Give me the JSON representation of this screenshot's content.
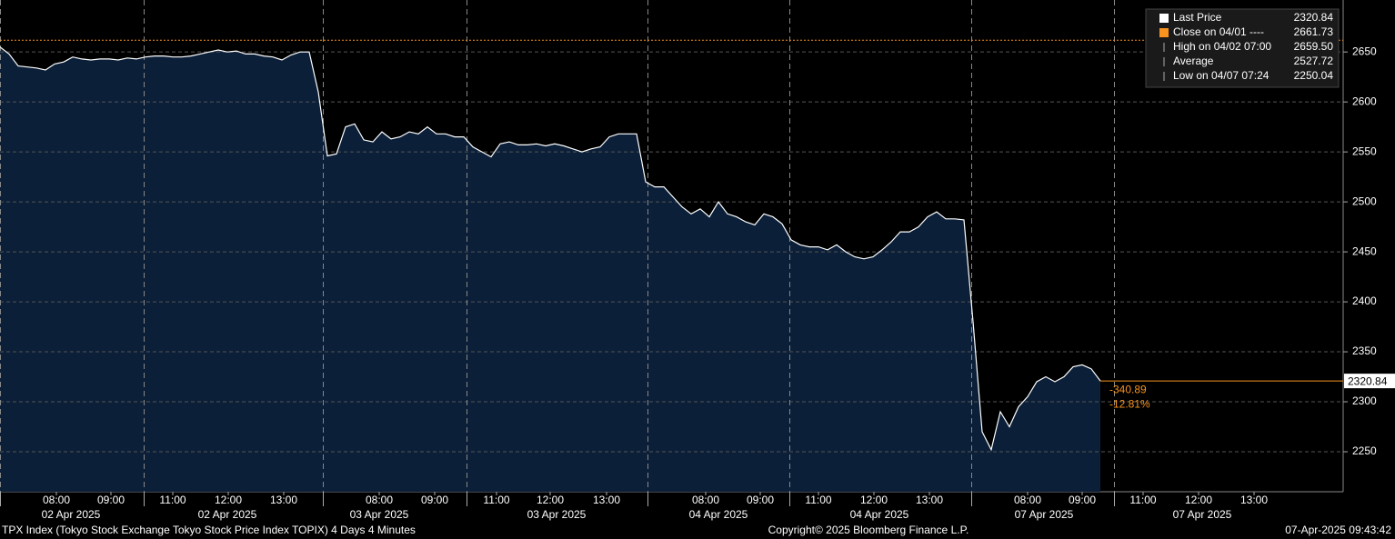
{
  "chart_data": {
    "type": "area",
    "title": "TPX Index (Tokyo Stock Exchange Tokyo Stock Price Index TOPIX) 4 Days 4 Minutes",
    "copyright": "Copyright© 2025 Bloomberg Finance L.P.",
    "timestamp": "07-Apr-2025 09:43:42",
    "color": "#ffffff",
    "fill": "#0b1f38",
    "values": [
      2655,
      2648,
      2636,
      2635,
      2634,
      2632,
      2638,
      2640,
      2645,
      2643,
      2642,
      2643,
      2643,
      2642,
      2644,
      2643,
      2645,
      2646,
      2646,
      2645,
      2645,
      2646,
      2648,
      2650,
      2652,
      2650,
      2651,
      2648,
      2648,
      2646,
      2645,
      2642,
      2647,
      2650,
      2650,
      2610,
      2546,
      2548,
      2575,
      2578,
      2562,
      2560,
      2570,
      2563,
      2565,
      2570,
      2568,
      2575,
      2568,
      2568,
      2565,
      2565,
      2555,
      2550,
      2545,
      2558,
      2560,
      2557,
      2557,
      2558,
      2556,
      2558,
      2556,
      2553,
      2550,
      2553,
      2555,
      2565,
      2568,
      2568,
      2568,
      2520,
      2515,
      2515,
      2505,
      2495,
      2488,
      2493,
      2485,
      2500,
      2488,
      2485,
      2480,
      2477,
      2488,
      2485,
      2478,
      2462,
      2457,
      2455,
      2455,
      2452,
      2457,
      2450,
      2445,
      2443,
      2445,
      2452,
      2460,
      2470,
      2470,
      2475,
      2485,
      2490,
      2483,
      2483,
      2482,
      2380,
      2270,
      2252,
      2290,
      2275,
      2295,
      2305,
      2320,
      2325,
      2320,
      2325,
      2335,
      2337,
      2333,
      2320.84
    ],
    "close_line": 2661.73,
    "last_price": 2320.84,
    "change": "-340.89",
    "change_pct": "-12.81%",
    "legend": [
      {
        "name": "Last Price",
        "value": 2320.84
      },
      {
        "name": "Close on 04/01 ----",
        "value": 2661.73
      },
      {
        "name": "High on 04/02 07:00",
        "value": 2659.5,
        "value_label": "2659.50"
      },
      {
        "name": "Average",
        "value": 2527.72
      },
      {
        "name": "Low on 04/07 07:24",
        "value": 2250.04
      }
    ],
    "xlim": [
      0,
      147.7
    ],
    "ylim": [
      2210,
      2702
    ],
    "yticks": [
      2250,
      2300,
      2350,
      2400,
      2450,
      2500,
      2550,
      2600,
      2650
    ],
    "xticks": [
      {
        "value": 6.2,
        "label": "08:00"
      },
      {
        "value": 12.2,
        "label": "09:00"
      },
      {
        "value": 19,
        "label": "11:00"
      },
      {
        "value": 25.1,
        "label": "12:00"
      },
      {
        "value": 31.2,
        "label": "13:00"
      },
      {
        "value": 41.7,
        "label": "08:00"
      },
      {
        "value": 47.8,
        "label": "09:00"
      },
      {
        "value": 54.6,
        "label": "11:00"
      },
      {
        "value": 60.5,
        "label": "12:00"
      },
      {
        "value": 66.7,
        "label": "13:00"
      },
      {
        "value": 77.6,
        "label": "08:00"
      },
      {
        "value": 83.6,
        "label": "09:00"
      },
      {
        "value": 90,
        "label": "11:00"
      },
      {
        "value": 96.1,
        "label": "12:00"
      },
      {
        "value": 102.2,
        "label": "13:00"
      },
      {
        "value": 113,
        "label": "08:00"
      },
      {
        "value": 119,
        "label": "09:00"
      },
      {
        "value": 125.7,
        "label": "11:00"
      },
      {
        "value": 131.8,
        "label": "12:00"
      },
      {
        "value": 137.9,
        "label": "13:00"
      }
    ],
    "date_ticks": [
      {
        "value": 7.8,
        "label": "02 Apr 2025"
      },
      {
        "value": 25,
        "label": "02 Apr 2025"
      },
      {
        "value": 41.7,
        "label": "03 Apr 2025"
      },
      {
        "value": 61.2,
        "label": "03 Apr 2025"
      },
      {
        "value": 79,
        "label": "04 Apr 2025"
      },
      {
        "value": 96.7,
        "label": "04 Apr 2025"
      },
      {
        "value": 114.8,
        "label": "07 Apr 2025"
      },
      {
        "value": 132.2,
        "label": "07 Apr 2025"
      }
    ],
    "session_breaks": [
      0,
      15.8,
      35.5,
      51.3,
      71.2,
      86.8,
      106.8,
      122.5
    ],
    "grid": true
  }
}
